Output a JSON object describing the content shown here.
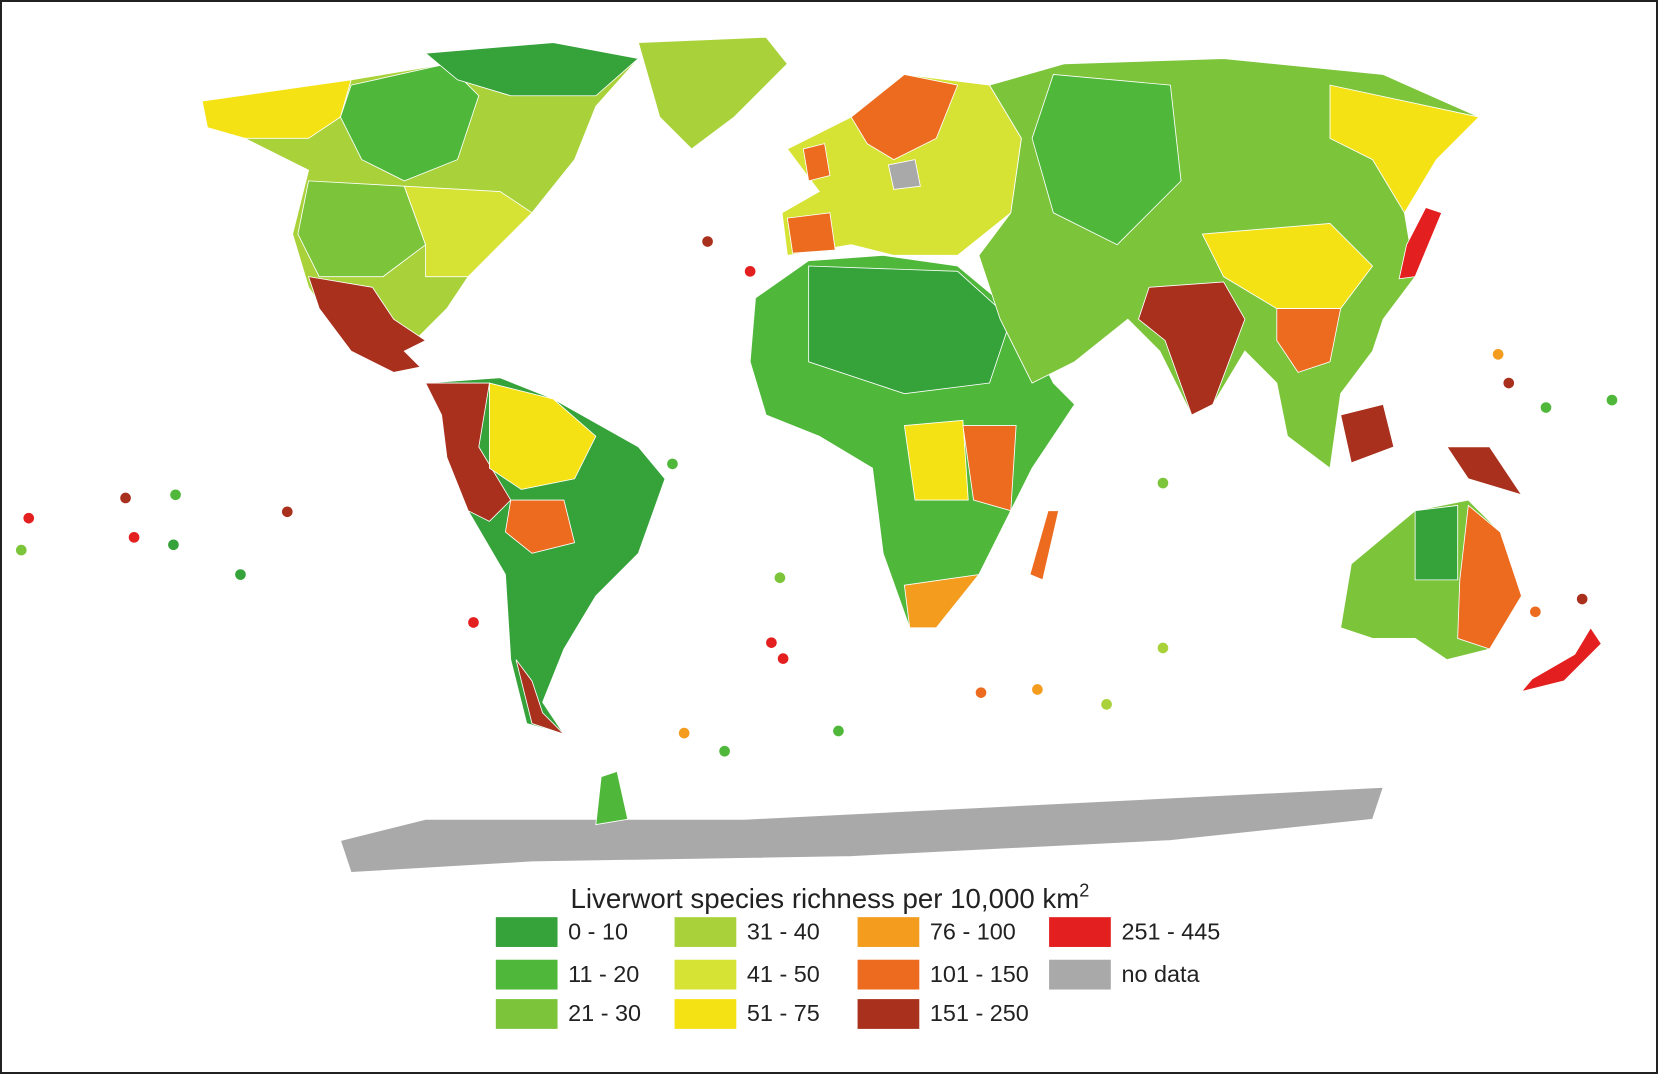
{
  "legend": {
    "title": "Liverwort species richness per 10,000 km",
    "title_sup": "2",
    "items": [
      {
        "label": "0 - 10",
        "color": "#35a23a"
      },
      {
        "label": "11 - 20",
        "color": "#4fb83a"
      },
      {
        "label": "21 - 30",
        "color": "#7cc43a"
      },
      {
        "label": "31 - 40",
        "color": "#a9d23a"
      },
      {
        "label": "41 - 50",
        "color": "#d6e234"
      },
      {
        "label": "51 - 75",
        "color": "#f5e214"
      },
      {
        "label": "76 - 100",
        "color": "#f39c1e"
      },
      {
        "label": "101 - 150",
        "color": "#ec6b1e"
      },
      {
        "label": "151 - 250",
        "color": "#a8301c"
      },
      {
        "label": "251 - 445",
        "color": "#e3201f"
      },
      {
        "label": "no data",
        "color": "#a9a9a9"
      }
    ]
  }
}
